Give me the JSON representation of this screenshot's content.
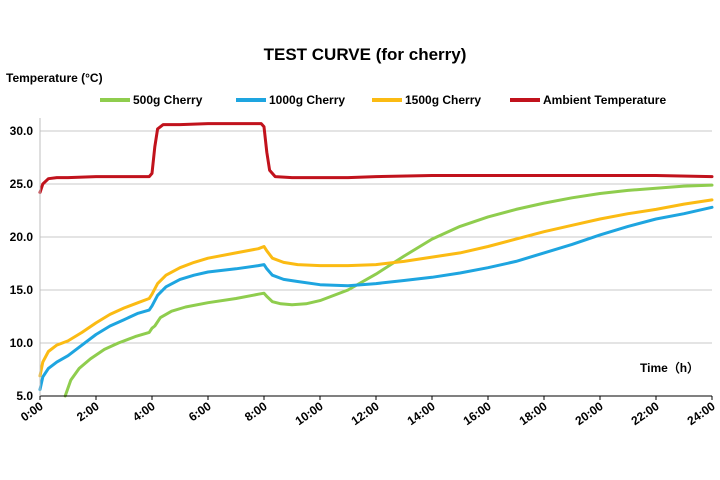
{
  "chart_data": {
    "type": "line",
    "title": "TEST CURVE (for cherry)",
    "ylabel": "Temperature (°C)",
    "xlabel": "Time（h）",
    "xlim": [
      0,
      24
    ],
    "ylim": [
      5,
      32
    ],
    "grid": "horizontal",
    "legend_position": "top",
    "yticks": [
      "5.0",
      "10.0",
      "15.0",
      "20.0",
      "25.0",
      "30.0"
    ],
    "xticks": [
      "0:00",
      "2:00",
      "4:00",
      "6:00",
      "8:00",
      "10:00",
      "12:00",
      "14:00",
      "16:00",
      "18:00",
      "20:00",
      "22:00",
      "24:00"
    ],
    "series": [
      {
        "name": "500g Cherry",
        "color": "#8fcd4e",
        "points": [
          [
            0.9,
            5.0
          ],
          [
            1.1,
            6.5
          ],
          [
            1.4,
            7.6
          ],
          [
            1.8,
            8.5
          ],
          [
            2.3,
            9.4
          ],
          [
            2.8,
            10.0
          ],
          [
            3.4,
            10.6
          ],
          [
            3.9,
            11.0
          ],
          [
            4.0,
            11.4
          ],
          [
            4.1,
            11.6
          ],
          [
            4.3,
            12.4
          ],
          [
            4.7,
            13.0
          ],
          [
            5.2,
            13.4
          ],
          [
            6.0,
            13.8
          ],
          [
            7.0,
            14.2
          ],
          [
            7.8,
            14.6
          ],
          [
            8.0,
            14.7
          ],
          [
            8.1,
            14.4
          ],
          [
            8.3,
            13.9
          ],
          [
            8.6,
            13.7
          ],
          [
            9.0,
            13.6
          ],
          [
            9.5,
            13.7
          ],
          [
            10.0,
            14.0
          ],
          [
            11.0,
            15.0
          ],
          [
            12.0,
            16.5
          ],
          [
            13.0,
            18.2
          ],
          [
            14.0,
            19.8
          ],
          [
            15.0,
            21.0
          ],
          [
            16.0,
            21.9
          ],
          [
            17.0,
            22.6
          ],
          [
            18.0,
            23.2
          ],
          [
            19.0,
            23.7
          ],
          [
            20.0,
            24.1
          ],
          [
            21.0,
            24.4
          ],
          [
            22.0,
            24.6
          ],
          [
            23.0,
            24.8
          ],
          [
            24.0,
            24.9
          ]
        ]
      },
      {
        "name": "1000g Cherry",
        "color": "#1ea5e0",
        "points": [
          [
            0.0,
            5.6
          ],
          [
            0.1,
            6.8
          ],
          [
            0.3,
            7.6
          ],
          [
            0.6,
            8.2
          ],
          [
            1.0,
            8.8
          ],
          [
            1.5,
            9.8
          ],
          [
            2.0,
            10.8
          ],
          [
            2.5,
            11.6
          ],
          [
            3.0,
            12.2
          ],
          [
            3.5,
            12.8
          ],
          [
            3.9,
            13.1
          ],
          [
            4.0,
            13.5
          ],
          [
            4.2,
            14.5
          ],
          [
            4.5,
            15.3
          ],
          [
            5.0,
            16.0
          ],
          [
            5.5,
            16.4
          ],
          [
            6.0,
            16.7
          ],
          [
            7.0,
            17.0
          ],
          [
            7.8,
            17.3
          ],
          [
            8.0,
            17.4
          ],
          [
            8.1,
            17.0
          ],
          [
            8.3,
            16.4
          ],
          [
            8.7,
            16.0
          ],
          [
            9.2,
            15.8
          ],
          [
            10.0,
            15.5
          ],
          [
            11.0,
            15.4
          ],
          [
            12.0,
            15.6
          ],
          [
            13.0,
            15.9
          ],
          [
            14.0,
            16.2
          ],
          [
            15.0,
            16.6
          ],
          [
            16.0,
            17.1
          ],
          [
            17.0,
            17.7
          ],
          [
            18.0,
            18.5
          ],
          [
            19.0,
            19.3
          ],
          [
            20.0,
            20.2
          ],
          [
            21.0,
            21.0
          ],
          [
            22.0,
            21.7
          ],
          [
            23.0,
            22.2
          ],
          [
            24.0,
            22.8
          ]
        ]
      },
      {
        "name": "1500g Cherry",
        "color": "#fbbb13",
        "points": [
          [
            0.0,
            6.9
          ],
          [
            0.1,
            8.2
          ],
          [
            0.3,
            9.2
          ],
          [
            0.6,
            9.8
          ],
          [
            1.0,
            10.2
          ],
          [
            1.5,
            11.0
          ],
          [
            2.0,
            11.9
          ],
          [
            2.5,
            12.7
          ],
          [
            3.0,
            13.3
          ],
          [
            3.5,
            13.8
          ],
          [
            3.9,
            14.2
          ],
          [
            4.0,
            14.6
          ],
          [
            4.2,
            15.6
          ],
          [
            4.5,
            16.4
          ],
          [
            5.0,
            17.1
          ],
          [
            5.5,
            17.6
          ],
          [
            6.0,
            18.0
          ],
          [
            7.0,
            18.5
          ],
          [
            7.8,
            18.9
          ],
          [
            8.0,
            19.1
          ],
          [
            8.1,
            18.7
          ],
          [
            8.3,
            18.0
          ],
          [
            8.7,
            17.6
          ],
          [
            9.2,
            17.4
          ],
          [
            10.0,
            17.3
          ],
          [
            11.0,
            17.3
          ],
          [
            12.0,
            17.4
          ],
          [
            13.0,
            17.7
          ],
          [
            14.0,
            18.1
          ],
          [
            15.0,
            18.5
          ],
          [
            16.0,
            19.1
          ],
          [
            17.0,
            19.8
          ],
          [
            18.0,
            20.5
          ],
          [
            19.0,
            21.1
          ],
          [
            20.0,
            21.7
          ],
          [
            21.0,
            22.2
          ],
          [
            22.0,
            22.6
          ],
          [
            23.0,
            23.1
          ],
          [
            24.0,
            23.5
          ]
        ]
      },
      {
        "name": "Ambient Temperature",
        "color": "#c1121c",
        "points": [
          [
            0.0,
            24.2
          ],
          [
            0.1,
            25.0
          ],
          [
            0.3,
            25.5
          ],
          [
            0.6,
            25.6
          ],
          [
            1.0,
            25.6
          ],
          [
            2.0,
            25.7
          ],
          [
            3.0,
            25.7
          ],
          [
            3.9,
            25.7
          ],
          [
            4.0,
            26.0
          ],
          [
            4.1,
            28.5
          ],
          [
            4.2,
            30.2
          ],
          [
            4.4,
            30.6
          ],
          [
            5.0,
            30.6
          ],
          [
            6.0,
            30.7
          ],
          [
            7.0,
            30.7
          ],
          [
            7.9,
            30.7
          ],
          [
            8.0,
            30.4
          ],
          [
            8.1,
            28.0
          ],
          [
            8.2,
            26.3
          ],
          [
            8.4,
            25.7
          ],
          [
            9.0,
            25.6
          ],
          [
            10.0,
            25.6
          ],
          [
            11.0,
            25.6
          ],
          [
            12.0,
            25.7
          ],
          [
            14.0,
            25.8
          ],
          [
            16.0,
            25.8
          ],
          [
            18.0,
            25.8
          ],
          [
            20.0,
            25.8
          ],
          [
            22.0,
            25.8
          ],
          [
            24.0,
            25.7
          ]
        ]
      }
    ]
  }
}
